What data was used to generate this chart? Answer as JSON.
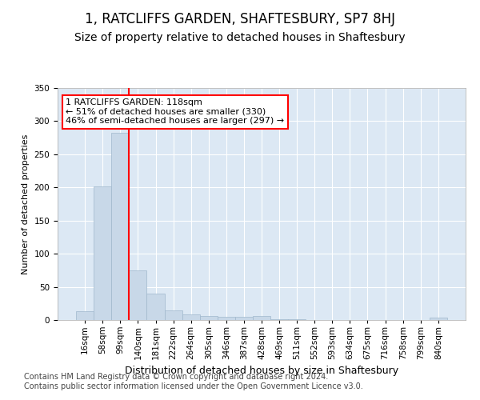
{
  "title": "1, RATCLIFFS GARDEN, SHAFTESBURY, SP7 8HJ",
  "subtitle": "Size of property relative to detached houses in Shaftesbury",
  "xlabel": "Distribution of detached houses by size in Shaftesbury",
  "ylabel": "Number of detached properties",
  "bin_labels": [
    "16sqm",
    "58sqm",
    "99sqm",
    "140sqm",
    "181sqm",
    "222sqm",
    "264sqm",
    "305sqm",
    "346sqm",
    "387sqm",
    "428sqm",
    "469sqm",
    "511sqm",
    "552sqm",
    "593sqm",
    "634sqm",
    "675sqm",
    "716sqm",
    "758sqm",
    "799sqm",
    "840sqm"
  ],
  "bar_values": [
    13,
    202,
    283,
    75,
    40,
    14,
    8,
    6,
    5,
    5,
    6,
    1,
    1,
    0,
    0,
    0,
    0,
    0,
    0,
    0,
    4
  ],
  "bar_color": "#c8d8e8",
  "bar_edgecolor": "#a0b8cc",
  "red_line_index": 2.5,
  "annotation_text": "1 RATCLIFFS GARDEN: 118sqm\n← 51% of detached houses are smaller (330)\n46% of semi-detached houses are larger (297) →",
  "annotation_box_color": "white",
  "annotation_box_edgecolor": "red",
  "ylim": [
    0,
    350
  ],
  "yticks": [
    0,
    50,
    100,
    150,
    200,
    250,
    300,
    350
  ],
  "background_color": "#dce8f4",
  "footer_text": "Contains HM Land Registry data © Crown copyright and database right 2024.\nContains public sector information licensed under the Open Government Licence v3.0.",
  "title_fontsize": 12,
  "subtitle_fontsize": 10,
  "xlabel_fontsize": 9,
  "ylabel_fontsize": 8,
  "tick_fontsize": 7.5,
  "annotation_fontsize": 8,
  "footer_fontsize": 7
}
